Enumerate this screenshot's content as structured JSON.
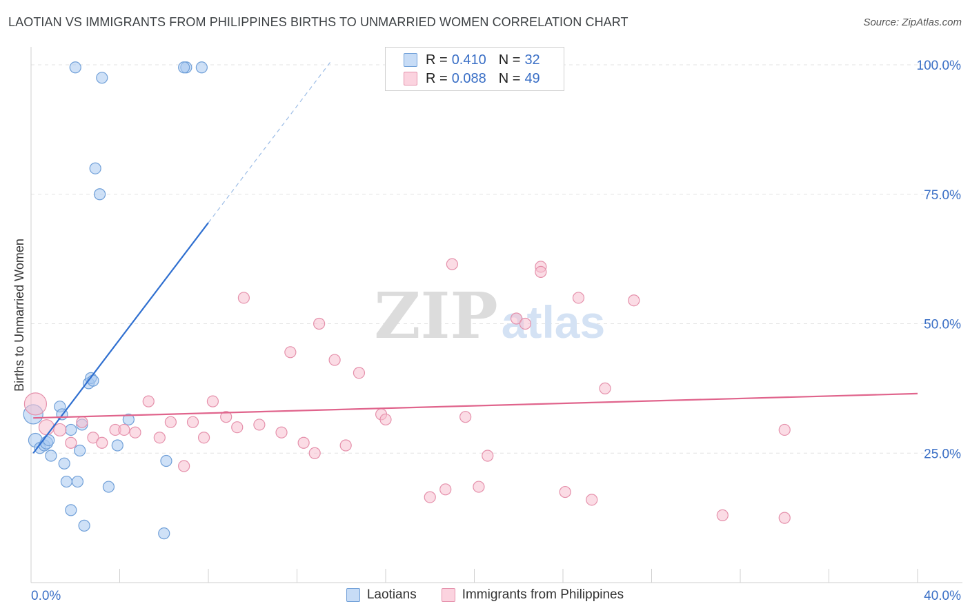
{
  "title": "LAOTIAN VS IMMIGRANTS FROM PHILIPPINES BIRTHS TO UNMARRIED WOMEN CORRELATION CHART",
  "source": "Source: ZipAtlas.com",
  "watermark": {
    "zip": "ZIP",
    "atlas": "atlas"
  },
  "legend_stats": [
    {
      "r_label": "R =",
      "r_value": "0.410",
      "n_label": "N =",
      "n_value": "32",
      "color": "#a8c8f0",
      "border": "#6f9fd8"
    },
    {
      "r_label": "R =",
      "r_value": "0.088",
      "n_label": "N =",
      "n_value": "49",
      "color": "#f8c0d0",
      "border": "#e590ab"
    }
  ],
  "bottom_legend": [
    {
      "label": "Laotians",
      "color": "#a8c8f0",
      "border": "#6f9fd8"
    },
    {
      "label": "Immigrants from Philippines",
      "color": "#f8c0d0",
      "border": "#e590ab"
    }
  ],
  "chart_data": {
    "type": "scatter",
    "title": "LAOTIAN VS IMMIGRANTS FROM PHILIPPINES BIRTHS TO UNMARRIED WOMEN CORRELATION CHART",
    "xlabel": "",
    "ylabel": "Births to Unmarried Women",
    "xlim": [
      0,
      40
    ],
    "ylim": [
      0,
      102
    ],
    "x_tick_labels": [
      "0.0%",
      "40.0%"
    ],
    "y_ticks": [
      25,
      50,
      75,
      100
    ],
    "y_tick_labels": [
      "25.0%",
      "50.0%",
      "75.0%",
      "100.0%"
    ],
    "grid": true,
    "legend_position": "top-center",
    "series": [
      {
        "name": "Laotians",
        "color": "#a8c8f0",
        "stroke": "#6f9fd8",
        "line_color": "#2f6fd0",
        "trend": {
          "x0": 0.1,
          "y0": 25.0,
          "x1": 8.0,
          "y1": 69.5,
          "dash_to_x": 13.5,
          "dash_to_y": 100.5
        },
        "points": [
          [
            0.1,
            32.5,
            14
          ],
          [
            0.2,
            27.5,
            10
          ],
          [
            0.4,
            26,
            8
          ],
          [
            0.6,
            26.5,
            8
          ],
          [
            0.7,
            27,
            9
          ],
          [
            0.8,
            27.5,
            8
          ],
          [
            0.9,
            24.5,
            8
          ],
          [
            1.3,
            34,
            8
          ],
          [
            1.4,
            32.5,
            8
          ],
          [
            1.5,
            23,
            8
          ],
          [
            1.6,
            19.5,
            8
          ],
          [
            1.8,
            14,
            8
          ],
          [
            1.8,
            29.5,
            8
          ],
          [
            2.1,
            19.5,
            8
          ],
          [
            2.2,
            25.5,
            8
          ],
          [
            2.3,
            30.5,
            8
          ],
          [
            2.4,
            11,
            8
          ],
          [
            2.6,
            38.5,
            8
          ],
          [
            2.7,
            39.5,
            8
          ],
          [
            2.8,
            39,
            8
          ],
          [
            2.9,
            80,
            8
          ],
          [
            3.1,
            75,
            8
          ],
          [
            3.2,
            97.5,
            8
          ],
          [
            3.5,
            18.5,
            8
          ],
          [
            3.9,
            26.5,
            8
          ],
          [
            4.4,
            31.5,
            8
          ],
          [
            6.0,
            9.5,
            8
          ],
          [
            6.1,
            23.5,
            8
          ],
          [
            2.0,
            99.5,
            8
          ],
          [
            7.0,
            99.5,
            8
          ],
          [
            7.7,
            99.5,
            8
          ],
          [
            6.9,
            99.5,
            8
          ]
        ]
      },
      {
        "name": "Immigrants from Philippines",
        "color": "#f8c0d0",
        "stroke": "#e590ab",
        "line_color": "#e0648c",
        "trend": {
          "x0": 0.1,
          "y0": 31.8,
          "x1": 40.0,
          "y1": 36.5
        },
        "points": [
          [
            0.2,
            34.5,
            16
          ],
          [
            0.7,
            30,
            11
          ],
          [
            1.3,
            29.5,
            9
          ],
          [
            1.8,
            27,
            8
          ],
          [
            2.3,
            31,
            8
          ],
          [
            2.8,
            28,
            8
          ],
          [
            3.2,
            27,
            8
          ],
          [
            3.8,
            29.5,
            8
          ],
          [
            4.2,
            29.5,
            8
          ],
          [
            4.7,
            29,
            8
          ],
          [
            5.3,
            35,
            8
          ],
          [
            5.8,
            28,
            8
          ],
          [
            6.3,
            31,
            8
          ],
          [
            6.9,
            22.5,
            8
          ],
          [
            7.3,
            31,
            8
          ],
          [
            7.8,
            28,
            8
          ],
          [
            8.2,
            35,
            8
          ],
          [
            8.8,
            32,
            8
          ],
          [
            9.3,
            30,
            8
          ],
          [
            9.6,
            55,
            8
          ],
          [
            10.3,
            30.5,
            8
          ],
          [
            11.3,
            29,
            8
          ],
          [
            11.7,
            44.5,
            8
          ],
          [
            12.3,
            27,
            8
          ],
          [
            12.8,
            25,
            8
          ],
          [
            13.0,
            50,
            8
          ],
          [
            13.7,
            43,
            8
          ],
          [
            14.2,
            26.5,
            8
          ],
          [
            14.8,
            40.5,
            8
          ],
          [
            15.8,
            32.5,
            8
          ],
          [
            16.0,
            31.5,
            8
          ],
          [
            18.0,
            16.5,
            8
          ],
          [
            18.7,
            18,
            8
          ],
          [
            19.0,
            61.5,
            8
          ],
          [
            19.6,
            32,
            8
          ],
          [
            20.2,
            18.5,
            8
          ],
          [
            20.6,
            24.5,
            8
          ],
          [
            21.9,
            51,
            8
          ],
          [
            22.3,
            50,
            8
          ],
          [
            23.0,
            61,
            8
          ],
          [
            23.0,
            60,
            8
          ],
          [
            24.1,
            17.5,
            8
          ],
          [
            24.7,
            55,
            8
          ],
          [
            25.3,
            16,
            8
          ],
          [
            25.9,
            37.5,
            8
          ],
          [
            27.2,
            54.5,
            8
          ],
          [
            31.2,
            13,
            8
          ],
          [
            34.0,
            12.5,
            8
          ],
          [
            34.0,
            29.5,
            8
          ]
        ]
      }
    ]
  }
}
